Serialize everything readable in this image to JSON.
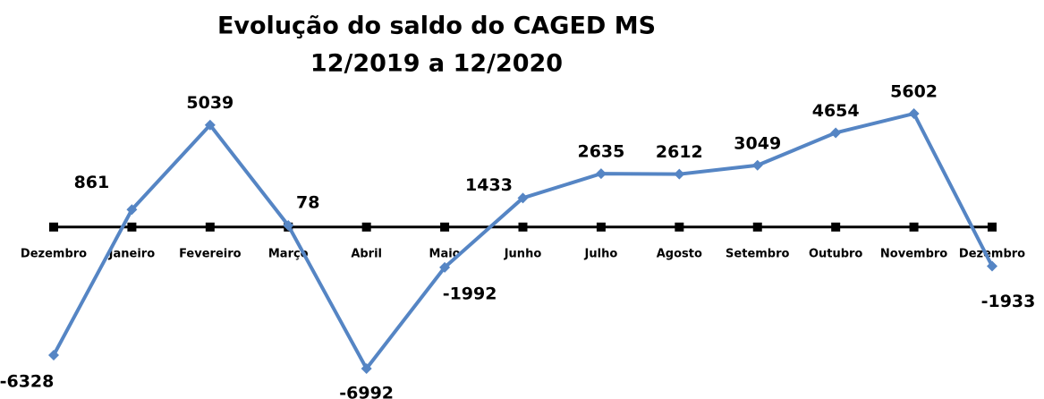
{
  "chart_data": {
    "type": "line",
    "title": "Evolução do saldo do CAGED MS",
    "subtitle": "12/2019 a 12/2020",
    "categories": [
      "Dezembro",
      "Janeiro",
      "Fevereiro",
      "Março",
      "Abril",
      "Maio",
      "Junho",
      "Julho",
      "Agosto",
      "Setembro",
      "Outubro",
      "Novembro",
      "Dezembro"
    ],
    "series": [
      {
        "color": "#5585c4",
        "values": [
          -6328,
          861,
          5039,
          78,
          -6992,
          -1992,
          1433,
          2635,
          2612,
          3049,
          4654,
          5602,
          -1933
        ]
      }
    ]
  }
}
